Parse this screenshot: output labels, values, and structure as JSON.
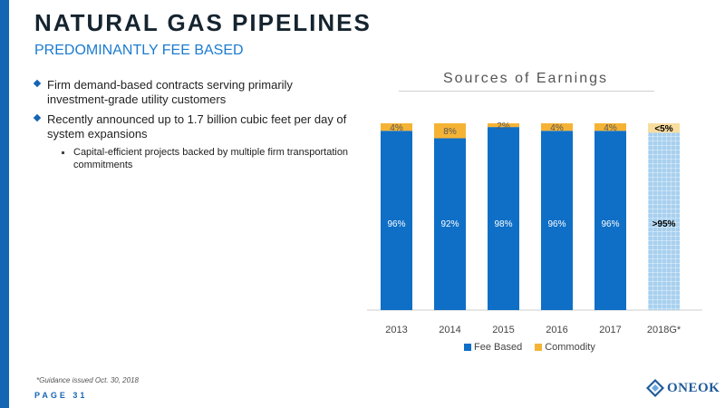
{
  "header": {
    "title": "NATURAL GAS PIPELINES",
    "subtitle": "PREDOMINANTLY FEE BASED"
  },
  "bullets": [
    "Firm demand-based contracts serving primarily investment-grade utility customers",
    "Recently announced up to 1.7 billion cubic feet per day of system expansions"
  ],
  "sub_bullets": [
    "Capital-efficient projects backed by multiple firm transportation commitments"
  ],
  "chart_data": {
    "type": "bar",
    "stacked": true,
    "title": "Sources of Earnings",
    "categories": [
      "2013",
      "2014",
      "2015",
      "2016",
      "2017",
      "2018G*"
    ],
    "series": [
      {
        "name": "Fee Based",
        "values": [
          96,
          92,
          98,
          96,
          96,
          95
        ],
        "labels": [
          "96%",
          "92%",
          "98%",
          "96%",
          "96%",
          ">95%"
        ]
      },
      {
        "name": "Commodity",
        "values": [
          4,
          8,
          2,
          4,
          4,
          5
        ],
        "labels": [
          "4%",
          "8%",
          "2%",
          "4%",
          "4%",
          "<5%"
        ]
      }
    ],
    "ylim": [
      0,
      100
    ],
    "grid": false,
    "legend": "bottom",
    "guidance_category": "2018G*"
  },
  "colors": {
    "fee_based": "#0f6fc6",
    "commodity": "#f5b335",
    "fee_based_guidance": "#a8d0ef",
    "commodity_guidance": "#f8dd9e",
    "accent": "#1565b5"
  },
  "footnote": "*Guidance issued Oct. 30, 2018",
  "page_label": "PAGE 31",
  "logo": {
    "text": "ONEOK"
  }
}
